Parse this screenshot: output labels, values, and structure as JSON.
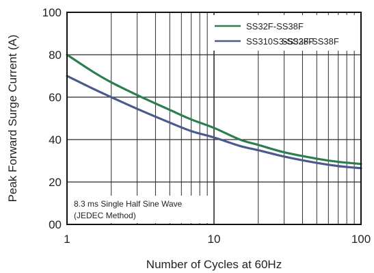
{
  "chart_data": {
    "type": "line",
    "title": "",
    "xlabel": "Number of Cycles at 60Hz",
    "ylabel": "Peak Forward Surge Current (A)",
    "xscale": "log",
    "xlim": [
      1,
      100
    ],
    "ylim": [
      0,
      100
    ],
    "xticks": [
      1,
      10,
      100
    ],
    "xtick_labels": [
      "1",
      "10",
      "100"
    ],
    "yticks": [
      0,
      20,
      40,
      60,
      80,
      100
    ],
    "ytick_labels": [
      "00",
      "20",
      "40",
      "60",
      "80",
      "100"
    ],
    "grid": true,
    "legend": {
      "position": "top-right",
      "overlap_text": "SS32F-SS38F"
    },
    "series": [
      {
        "name": "SS32F-SS38F",
        "color": "#2e7d4f",
        "x": [
          1,
          1.5,
          2,
          3,
          5,
          7,
          10,
          15,
          20,
          30,
          50,
          70,
          100
        ],
        "y": [
          80,
          72,
          67,
          61,
          54,
          49.5,
          45.5,
          40,
          37.5,
          34,
          31,
          29.5,
          28.5
        ]
      },
      {
        "name": "SS310S3-SS38F",
        "color": "#4a5a8c",
        "x": [
          1,
          1.5,
          2,
          3,
          5,
          7,
          10,
          15,
          20,
          30,
          50,
          70,
          100
        ],
        "y": [
          70,
          64,
          60,
          54.5,
          48,
          44,
          41,
          37,
          35,
          32,
          29,
          27.5,
          26.5
        ]
      }
    ],
    "annotations": [
      {
        "text": "8.3 ms Single Half Sine Wave"
      },
      {
        "text": "(JEDEC Method)"
      }
    ]
  }
}
